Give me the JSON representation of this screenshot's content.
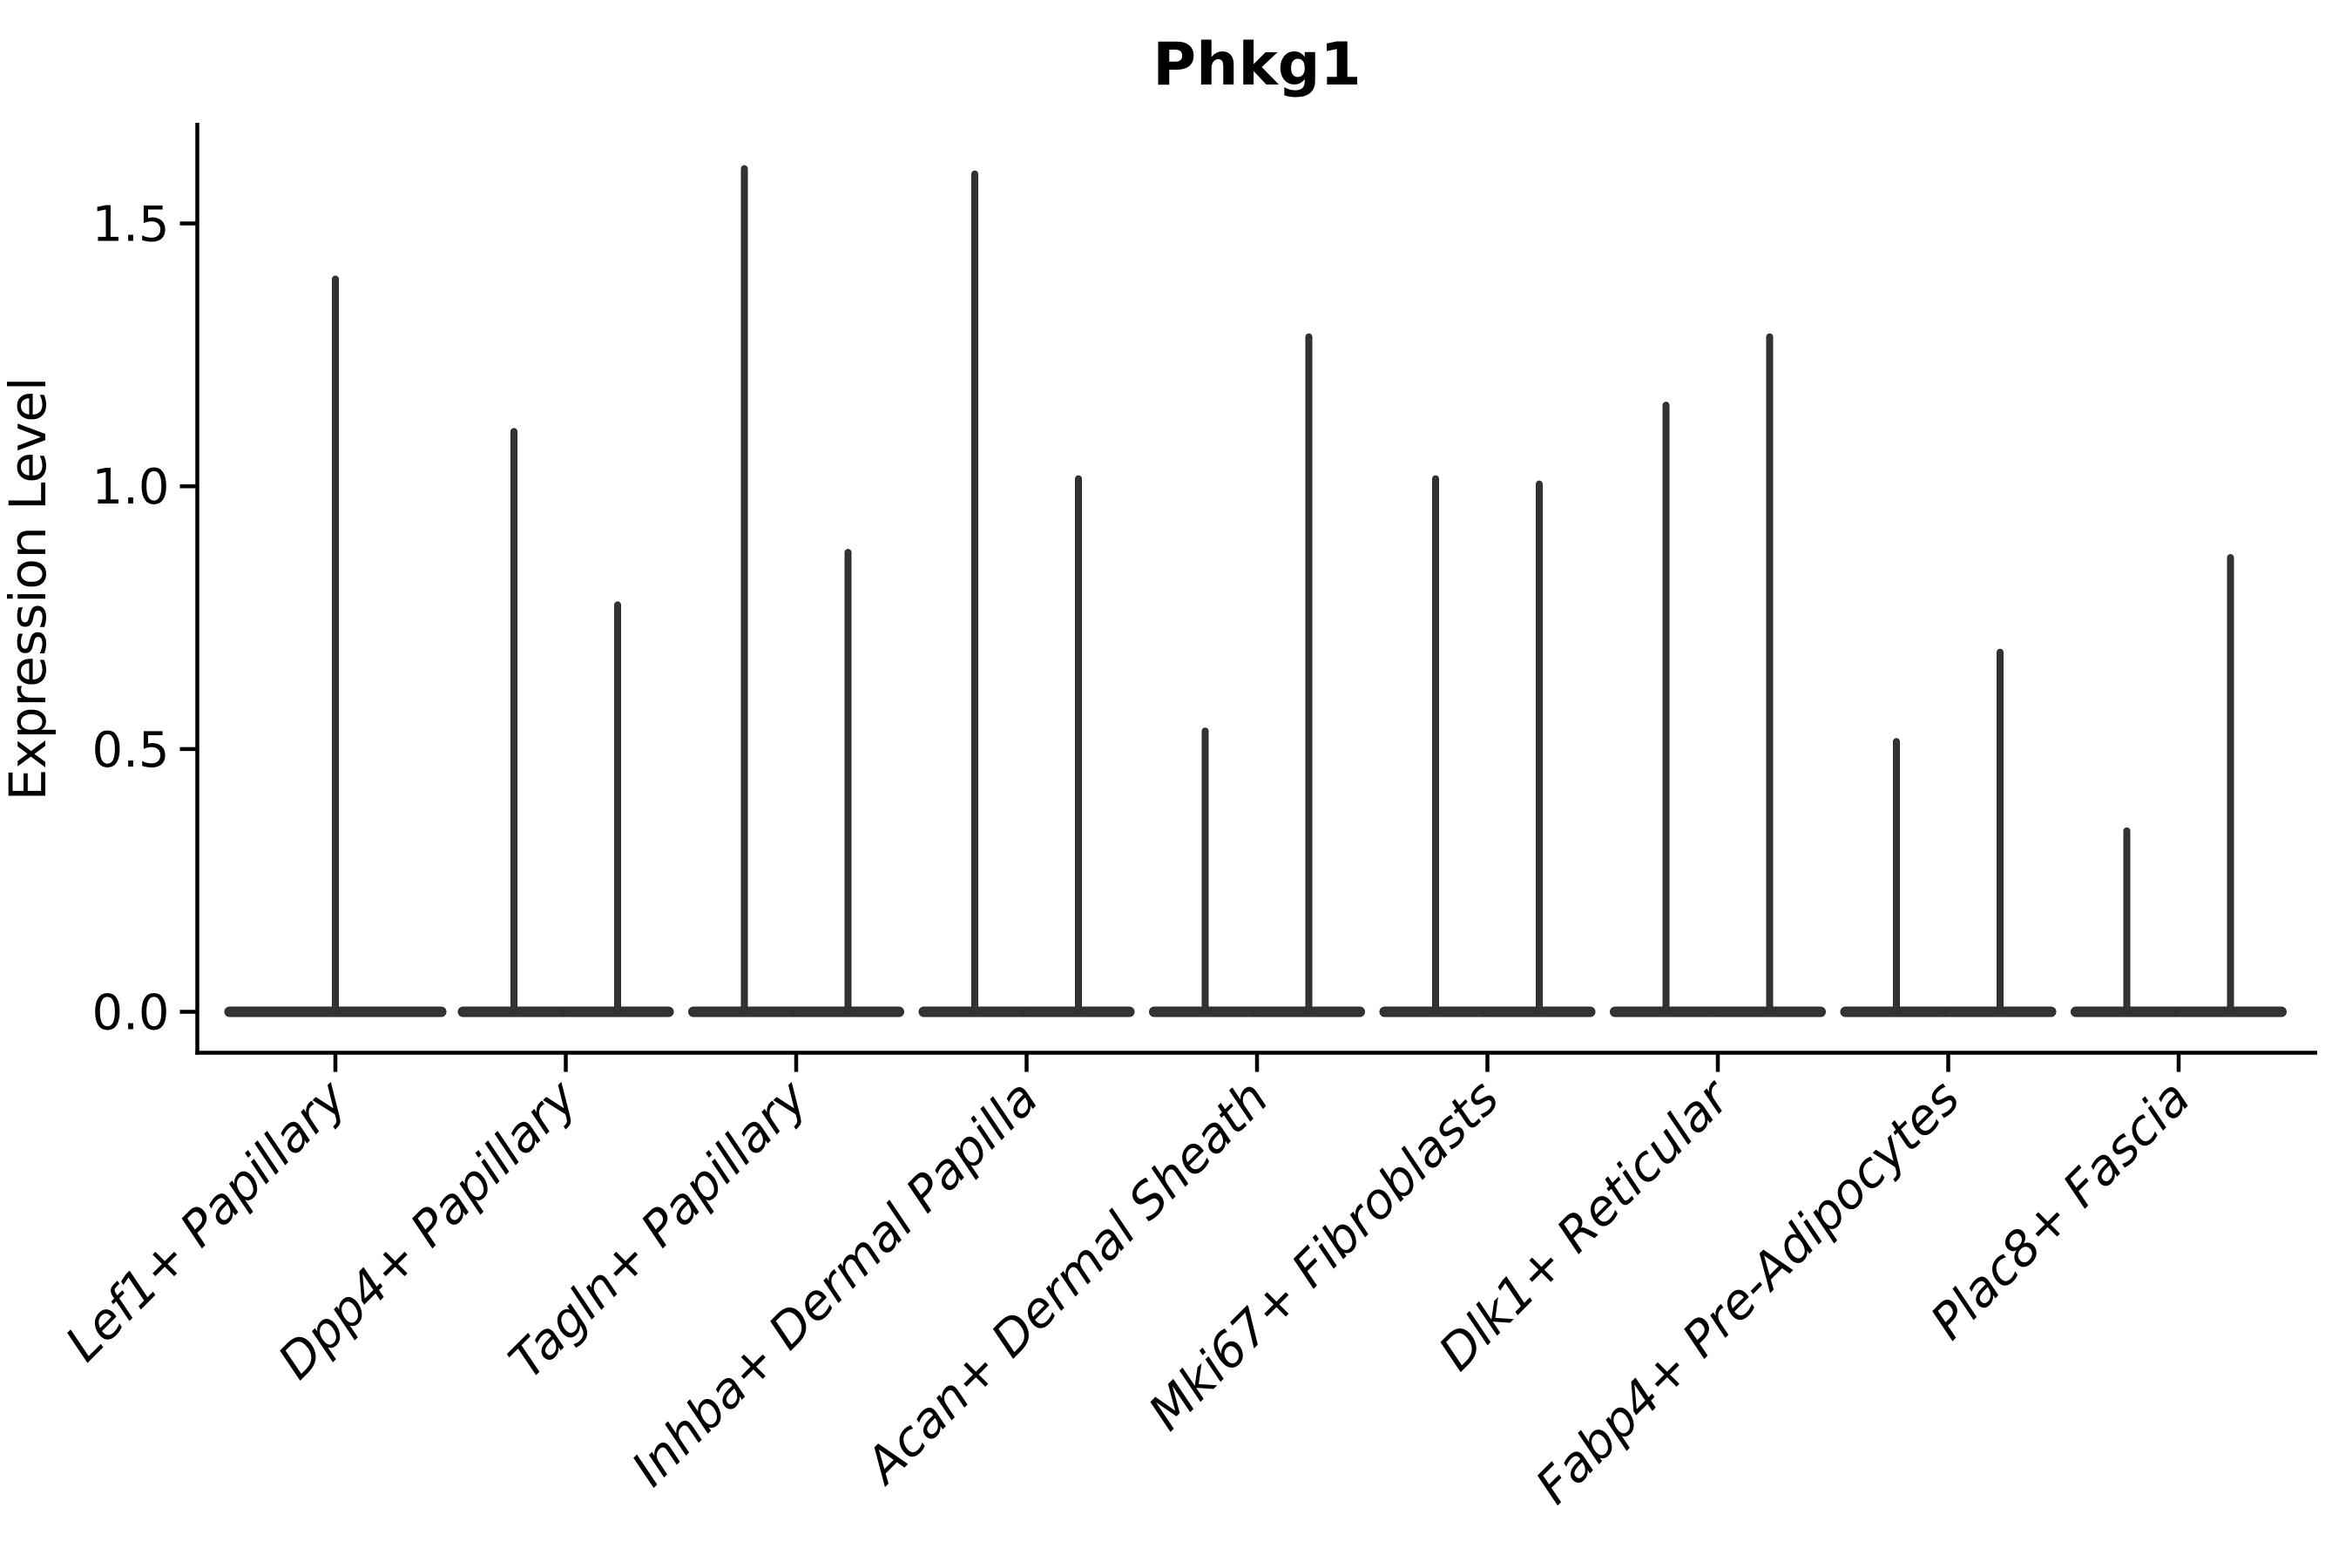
{
  "chart_data": {
    "type": "violin",
    "title": "Phkg1",
    "xlabel": "",
    "ylabel": "Expression Level",
    "ylim": [
      0,
      1.68
    ],
    "yticks": [
      0,
      0.5,
      1.0,
      1.5
    ],
    "ytick_labels": [
      "0.0",
      "0.5",
      "1.0",
      "1.5"
    ],
    "grid": false,
    "legend": null,
    "x_tick_label_rotation_deg": 45,
    "x_tick_label_style": "italic",
    "categories": [
      "Lef1+ Papillary",
      "Dpp4+ Papillary",
      "Tagln+ Papillary",
      "Inhba+ Dermal Papilla",
      "Acan+ Dermal Sheath",
      "Mki67+ Fibroblasts",
      "Dlk1+ Reticular",
      "Fabp4+ Pre-Adipocytes",
      "Plac8+ Fascia"
    ],
    "series": [
      {
        "category": "Lef1+ Papillary",
        "violin_min": 0,
        "violin_max_values": [
          1.4
        ]
      },
      {
        "category": "Dpp4+ Papillary",
        "violin_min": 0,
        "violin_max_values": [
          1.11,
          0.78
        ]
      },
      {
        "category": "Tagln+ Papillary",
        "violin_min": 0,
        "violin_max_values": [
          1.61,
          0.88
        ]
      },
      {
        "category": "Inhba+ Dermal Papilla",
        "violin_min": 0,
        "violin_max_values": [
          1.6,
          1.02
        ]
      },
      {
        "category": "Acan+ Dermal Sheath",
        "violin_min": 0,
        "violin_max_values": [
          0.54,
          1.29
        ]
      },
      {
        "category": "Mki67+ Fibroblasts",
        "violin_min": 0,
        "violin_max_values": [
          1.02,
          1.01
        ]
      },
      {
        "category": "Dlk1+ Reticular",
        "violin_min": 0,
        "violin_max_values": [
          1.16,
          1.29
        ]
      },
      {
        "category": "Fabp4+ Pre-Adipocytes",
        "violin_min": 0,
        "violin_max_values": [
          0.52,
          0.69
        ]
      },
      {
        "category": "Plac8+ Fascia",
        "violin_min": 0,
        "violin_max_values": [
          0.35,
          0.87
        ]
      }
    ],
    "shape_note": "Each violin is a flat lens at expression 0 with a thin vertical spike up to its max value; categories with two groups show two half-width violins, Lef1+ Papillary shows one full-width violin.",
    "colors": {
      "violin_fill": "#333333",
      "violin_edge": "#2a2a2a",
      "axis": "#000000",
      "text": "#000000",
      "background": "#ffffff"
    }
  }
}
